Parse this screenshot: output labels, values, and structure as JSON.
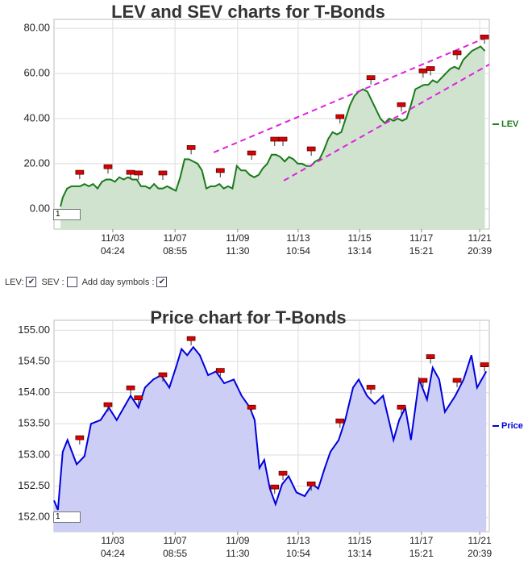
{
  "chart_data": [
    {
      "type": "line",
      "title": "LEV and SEV charts for T-Bonds",
      "range_input": "1",
      "xlim": [
        0,
        100
      ],
      "ylim": [
        -9,
        84
      ],
      "yticks": [
        {
          "value": 0,
          "label": "0.00"
        },
        {
          "value": 20,
          "label": "20.00"
        },
        {
          "value": 40,
          "label": "40.00"
        },
        {
          "value": 60,
          "label": "60.00"
        },
        {
          "value": 80,
          "label": "80.00"
        }
      ],
      "xticks": [
        {
          "value": 13.5,
          "label": "11/03\n04:24"
        },
        {
          "value": 27.8,
          "label": "11/07\n08:55"
        },
        {
          "value": 42.2,
          "label": "11/09\n11:30"
        },
        {
          "value": 56.1,
          "label": "11/13\n10:54"
        },
        {
          "value": 70.2,
          "label": "11/15\n13:14"
        },
        {
          "value": 84.4,
          "label": "11/17\n15:21"
        },
        {
          "value": 97.8,
          "label": "11/21\n20:39"
        }
      ],
      "grid": true,
      "legend": "right",
      "x": [
        1.5,
        2,
        3,
        4,
        5,
        6,
        7,
        8,
        9,
        10,
        11,
        12,
        13,
        14,
        15,
        16,
        17,
        18,
        19,
        20,
        21,
        22,
        23,
        24,
        25,
        26,
        27,
        28,
        29,
        30,
        31,
        32,
        33,
        34,
        35,
        36,
        37,
        38,
        39,
        40,
        41,
        42,
        43,
        44,
        45,
        46,
        47,
        48,
        49,
        50,
        51,
        52,
        53,
        54,
        55,
        56,
        57,
        58,
        59,
        60,
        61,
        62,
        63,
        64,
        65,
        66,
        67,
        68,
        69,
        70,
        71,
        72,
        73,
        74,
        75,
        76,
        77,
        78,
        79,
        80,
        81,
        82,
        83,
        84,
        85,
        86,
        87,
        88,
        89,
        90,
        91,
        92,
        93,
        94,
        95,
        96,
        97,
        98,
        99
      ],
      "series": [
        {
          "name": "LEV",
          "color": "#1a7a1a",
          "fill": "#cfe3cf",
          "values": [
            1,
            5,
            9,
            10,
            10,
            10,
            11,
            10,
            11,
            9,
            12,
            13,
            13,
            12,
            14,
            13,
            14,
            13,
            13,
            10,
            10,
            9,
            11,
            9,
            9,
            10,
            9,
            8,
            14,
            22,
            22,
            21,
            20,
            17,
            9,
            10,
            10,
            11,
            9,
            10,
            9,
            19,
            17,
            17,
            15,
            14,
            15,
            18,
            20,
            24,
            24,
            23,
            21,
            23,
            22,
            20,
            20,
            19,
            19,
            21,
            22,
            26,
            31,
            34,
            33,
            34,
            40,
            46,
            50,
            52,
            53,
            52,
            48,
            44,
            40,
            38,
            40,
            39,
            40,
            39,
            40,
            46,
            53,
            54,
            55,
            55,
            57,
            56,
            58,
            60,
            62,
            63,
            62,
            66,
            68,
            70,
            71,
            72,
            70
          ]
        }
      ],
      "markers": {
        "color": "#dd0000",
        "x": [
          5.9,
          12.4,
          17.6,
          19.4,
          25,
          31.5,
          38.2,
          45.4,
          50.7,
          52.6,
          59.1,
          65.7,
          72.8,
          79.8,
          84.8,
          86.5,
          92.6,
          98.9
        ],
        "values": [
          16,
          18.5,
          16,
          15.7,
          15.7,
          27,
          16.8,
          24.6,
          30.7,
          30.7,
          26.4,
          40.7,
          58,
          46,
          61,
          62,
          69,
          76
        ]
      },
      "trend_lines": {
        "color": "#e020e0",
        "lines": [
          {
            "x": [
              36.7,
              100
            ],
            "values": [
              25,
              76.5
            ]
          },
          {
            "x": [
              52.8,
              100
            ],
            "values": [
              12.5,
              64
            ]
          }
        ]
      }
    },
    {
      "type": "line",
      "title": "Price chart for T-Bonds",
      "range_input": "1",
      "xlim": [
        0,
        100
      ],
      "ylim": [
        151.77,
        155.16
      ],
      "yticks": [
        {
          "value": 152,
          "label": "152.00"
        },
        {
          "value": 152.5,
          "label": "152.50"
        },
        {
          "value": 153,
          "label": "153.00"
        },
        {
          "value": 153.5,
          "label": "153.50"
        },
        {
          "value": 154,
          "label": "154.00"
        },
        {
          "value": 154.5,
          "label": "154.50"
        },
        {
          "value": 155,
          "label": "155.00"
        }
      ],
      "xticks": [
        {
          "value": 13.5,
          "label": "11/03\n04:24"
        },
        {
          "value": 27.8,
          "label": "11/07\n08:55"
        },
        {
          "value": 42.2,
          "label": "11/09\n11:30"
        },
        {
          "value": 56.1,
          "label": "11/13\n10:54"
        },
        {
          "value": 70.2,
          "label": "11/15\n13:14"
        },
        {
          "value": 84.4,
          "label": "11/17\n15:21"
        },
        {
          "value": 97.8,
          "label": "11/21\n20:39"
        }
      ],
      "grid": true,
      "legend": "right",
      "x": [
        0,
        0.9,
        2,
        3.1,
        5.2,
        7,
        8.5,
        10.7,
        12.6,
        14.4,
        17.6,
        19.4,
        20.9,
        22.8,
        24.6,
        26.5,
        28,
        29.3,
        30.6,
        32,
        33.5,
        35.4,
        37.2,
        39.1,
        41.3,
        43.1,
        45,
        46.1,
        47.2,
        48.3,
        49.6,
        50.9,
        52.4,
        53.9,
        55.7,
        57.6,
        59.4,
        60.7,
        62.2,
        63.5,
        65.4,
        66.9,
        68.7,
        70,
        71.9,
        73.7,
        75.6,
        78,
        79.3,
        80.7,
        82,
        83.9,
        85.7,
        87,
        88.5,
        89.8,
        92.2,
        94.1,
        95.9,
        97.2,
        99.3
      ],
      "series": [
        {
          "name": "Price",
          "color": "#0000dd",
          "fill": "#cccef5",
          "values": [
            152.27,
            152.12,
            153.05,
            153.24,
            152.85,
            152.98,
            153.5,
            153.56,
            153.76,
            153.56,
            153.95,
            153.76,
            154.08,
            154.21,
            154.28,
            154.08,
            154.4,
            154.7,
            154.6,
            154.73,
            154.6,
            154.28,
            154.34,
            154.15,
            154.21,
            153.95,
            153.76,
            153.56,
            152.79,
            152.92,
            152.46,
            152.21,
            152.53,
            152.66,
            152.4,
            152.34,
            152.53,
            152.46,
            152.79,
            153.05,
            153.24,
            153.56,
            154.08,
            154.21,
            153.95,
            153.82,
            153.95,
            153.24,
            153.56,
            153.76,
            153.24,
            154.21,
            153.89,
            154.4,
            154.21,
            153.69,
            153.95,
            154.21,
            154.6,
            154.08,
            154.34
          ]
        }
      ],
      "markers": {
        "color": "#dd0000",
        "x": [
          5.9,
          12.4,
          17.6,
          19.4,
          25,
          31.5,
          38.2,
          45.4,
          50.7,
          52.6,
          59.1,
          65.7,
          72.8,
          79.8,
          84.8,
          86.5,
          92.6,
          98.9
        ],
        "values": [
          153.27,
          153.8,
          154.07,
          153.91,
          154.28,
          154.86,
          154.35,
          153.76,
          152.48,
          152.7,
          152.53,
          153.54,
          154.08,
          153.76,
          154.19,
          154.57,
          154.19,
          154.44
        ]
      }
    }
  ],
  "controls": {
    "items": [
      {
        "label": "LEV:",
        "checked": true
      },
      {
        "label": "SEV :",
        "checked": false
      },
      {
        "label": "Add day symbols :",
        "checked": true
      }
    ]
  }
}
